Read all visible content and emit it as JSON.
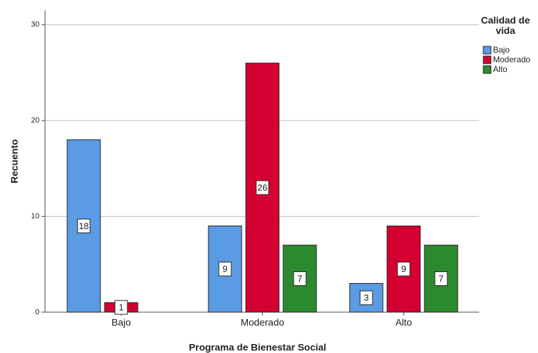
{
  "chart_data": {
    "type": "bar",
    "x_label": "Programa de Bienestar Social",
    "y_label": "Recuento",
    "legend_title": "Calidad de vida",
    "legend_position": "upper right",
    "categories": [
      "Bajo",
      "Moderado",
      "Alto"
    ],
    "series": [
      {
        "name": "Bajo",
        "color": "#5a9be3",
        "values": [
          18,
          9,
          3
        ]
      },
      {
        "name": "Moderado",
        "color": "#d50032",
        "values": [
          1,
          26,
          9
        ]
      },
      {
        "name": "Alto",
        "color": "#2b8a2e",
        "values": [
          null,
          7,
          7
        ]
      }
    ],
    "ylim": [
      0,
      31.5
    ],
    "yticks": [
      0,
      10,
      20,
      30
    ],
    "grid": true
  }
}
